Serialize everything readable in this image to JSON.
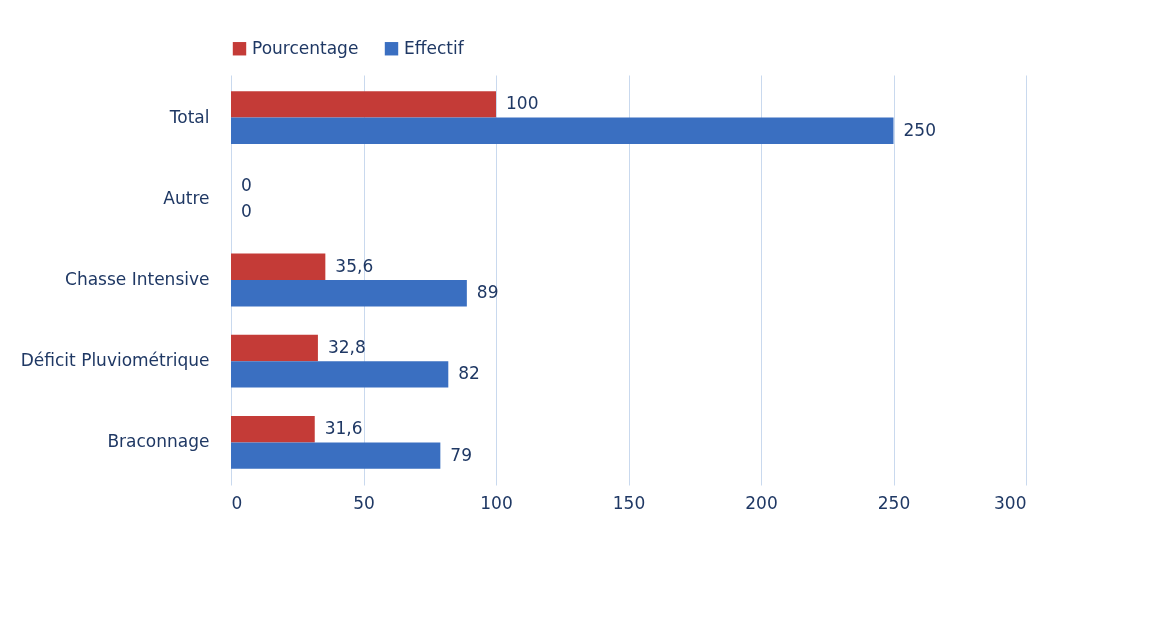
{
  "chart_data": {
    "type": "bar",
    "orientation": "horizontal",
    "categories": [
      "Total",
      "Autre",
      "Chasse Intensive",
      "Déficit Pluviométrique",
      "Braconnage"
    ],
    "series": [
      {
        "name": "Pourcentage",
        "color": "#c43b37",
        "values": [
          100,
          0,
          35.6,
          32.8,
          31.6
        ],
        "value_labels": [
          "100",
          "0",
          "35,6",
          "32,8",
          "31,6"
        ]
      },
      {
        "name": "Effectif",
        "color": "#3a6fc1",
        "values": [
          250,
          0,
          89,
          82,
          79
        ],
        "value_labels": [
          "250",
          "0",
          "89",
          "82",
          "79"
        ]
      }
    ],
    "xlim": [
      0,
      300
    ],
    "xticks": [
      0,
      50,
      100,
      150,
      200,
      250,
      300
    ],
    "grid": "x",
    "legend": "top"
  }
}
